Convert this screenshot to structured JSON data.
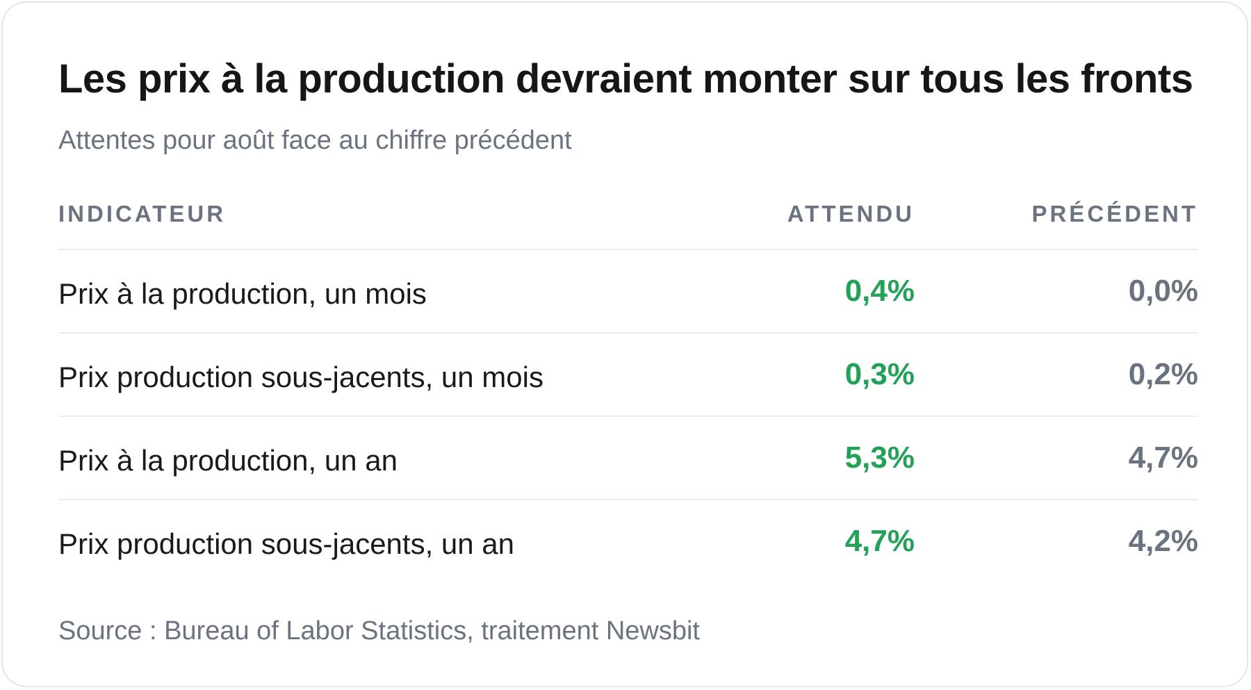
{
  "chart_data": {
    "type": "table",
    "title": "Les prix à la production devraient monter sur tous les fronts",
    "subtitle": "Attentes pour août face au chiffre précédent",
    "columns": [
      "INDICATEUR",
      "ATTENDU",
      "PRÉCÉDENT"
    ],
    "rows": [
      {
        "label": "Prix à la production, un mois",
        "expected": "0,4%",
        "previous": "0,0%"
      },
      {
        "label": "Prix production sous-jacents, un mois",
        "expected": "0,3%",
        "previous": "0,2%"
      },
      {
        "label": "Prix à la production, un an",
        "expected": "5,3%",
        "previous": "4,7%"
      },
      {
        "label": "Prix production sous-jacents, un an",
        "expected": "4,7%",
        "previous": "4,2%"
      }
    ],
    "source": "Source : Bureau of Labor Statistics, traitement Newsbit",
    "colors": {
      "expected": "#23a158",
      "previous": "#6b7280",
      "title": "#161616"
    }
  }
}
